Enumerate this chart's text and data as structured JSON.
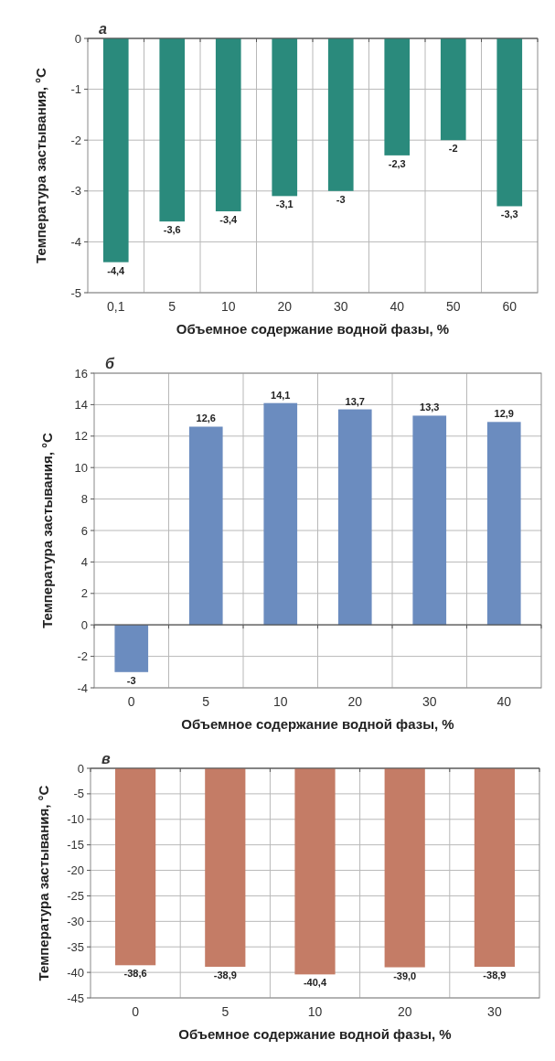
{
  "chart_data": [
    {
      "type": "bar",
      "title": "а",
      "xlabel": "Объемное содержание водной фазы, %",
      "ylabel": "Температура застывания, °С",
      "categories": [
        "0,1",
        "5",
        "10",
        "20",
        "30",
        "40",
        "50",
        "60"
      ],
      "values": [
        -4.4,
        -3.6,
        -3.4,
        -3.1,
        -3,
        -2.3,
        -2,
        -3.3
      ],
      "value_labels": [
        "-4,4",
        "-3,6",
        "-3,4",
        "-3,1",
        "-3",
        "-2,3",
        "-2",
        "-3,3"
      ],
      "color": "#2a8a7c",
      "ylim": [
        -5,
        0
      ],
      "yticks": [
        -5,
        -4,
        -3,
        -2,
        -1,
        0
      ],
      "grid": true
    },
    {
      "type": "bar",
      "title": "б",
      "xlabel": "Объемное содержание водной фазы, %",
      "ylabel": "Температура застывания, °С",
      "categories": [
        "0",
        "5",
        "10",
        "20",
        "30",
        "40"
      ],
      "values": [
        -3,
        12.6,
        14.1,
        13.7,
        13.3,
        12.9
      ],
      "value_labels": [
        "-3",
        "12,6",
        "14,1",
        "13,7",
        "13,3",
        "12,9"
      ],
      "color": "#6b8cbf",
      "ylim": [
        -4,
        16
      ],
      "yticks": [
        -4,
        -2,
        0,
        2,
        4,
        6,
        8,
        10,
        12,
        14,
        16
      ],
      "grid": true
    },
    {
      "type": "bar",
      "title": "в",
      "xlabel": "Объемное содержание водной фазы, %",
      "ylabel": "Температура застывания, °С",
      "categories": [
        "0",
        "5",
        "10",
        "20",
        "30"
      ],
      "values": [
        -38.6,
        -38.9,
        -40.4,
        -39.0,
        -38.9
      ],
      "value_labels": [
        "-38,6",
        "-38,9",
        "-40,4",
        "-39,0",
        "-38,9"
      ],
      "color": "#c47c66",
      "ylim": [
        -45,
        0
      ],
      "yticks": [
        -45,
        -40,
        -35,
        -30,
        -25,
        -20,
        -15,
        -10,
        -5,
        0
      ],
      "grid": true
    }
  ]
}
